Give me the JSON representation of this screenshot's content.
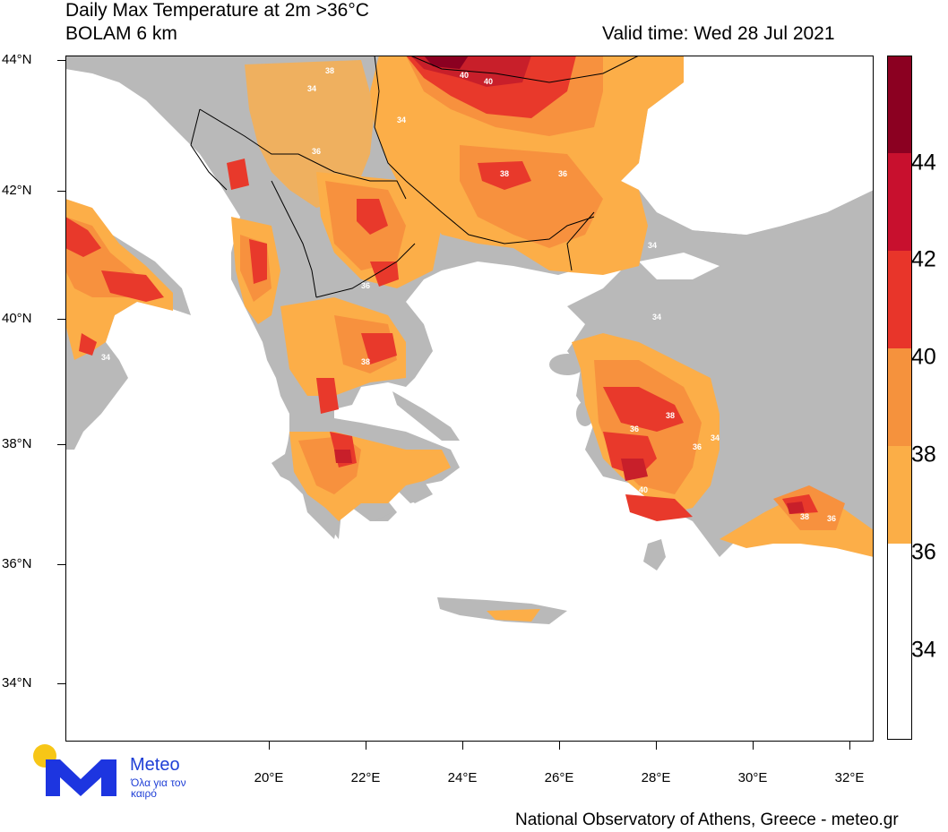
{
  "header": {
    "title_line1": "Daily Max Temperature at 2m >36°C",
    "title_line2": "BOLAM 6 km",
    "valid_time": "Valid time: Wed 28 Jul 2021"
  },
  "axes": {
    "latitudes": [
      "44°N",
      "42°N",
      "40°N",
      "38°N",
      "36°N",
      "34°N"
    ],
    "longitudes": [
      "20°E",
      "22°E",
      "24°E",
      "26°E",
      "28°E",
      "30°E",
      "32°E"
    ]
  },
  "legend": {
    "labels": [
      "44",
      "42",
      "40",
      "38",
      "36",
      "34"
    ],
    "colors": [
      "#8b0021",
      "#c8102e",
      "#e8352a",
      "#f5923d",
      "#fbae47",
      "#ffffff"
    ]
  },
  "map_colors": {
    "land": "#b9b9b9",
    "sea": "#ffffff",
    "t34": "#fcae48",
    "t36": "#f7913e",
    "t38": "#e8392b",
    "t40": "#c81f2a",
    "t44": "#8b0021",
    "border": "#000000"
  },
  "contour_labels": [
    {
      "text": "34"
    },
    {
      "text": "34"
    },
    {
      "text": "34"
    },
    {
      "text": "34"
    },
    {
      "text": "34"
    },
    {
      "text": "34"
    },
    {
      "text": "36"
    },
    {
      "text": "36"
    },
    {
      "text": "36"
    },
    {
      "text": "36"
    },
    {
      "text": "36"
    },
    {
      "text": "36"
    },
    {
      "text": "38"
    },
    {
      "text": "38"
    },
    {
      "text": "38"
    },
    {
      "text": "38"
    },
    {
      "text": "38"
    },
    {
      "text": "40"
    },
    {
      "text": "40"
    },
    {
      "text": "40"
    }
  ],
  "logo": {
    "name": "Meteo",
    "tagline": "Όλα για τον καιρό"
  },
  "footer": {
    "credit": "National Observatory of Athens, Greece - meteo.gr"
  }
}
